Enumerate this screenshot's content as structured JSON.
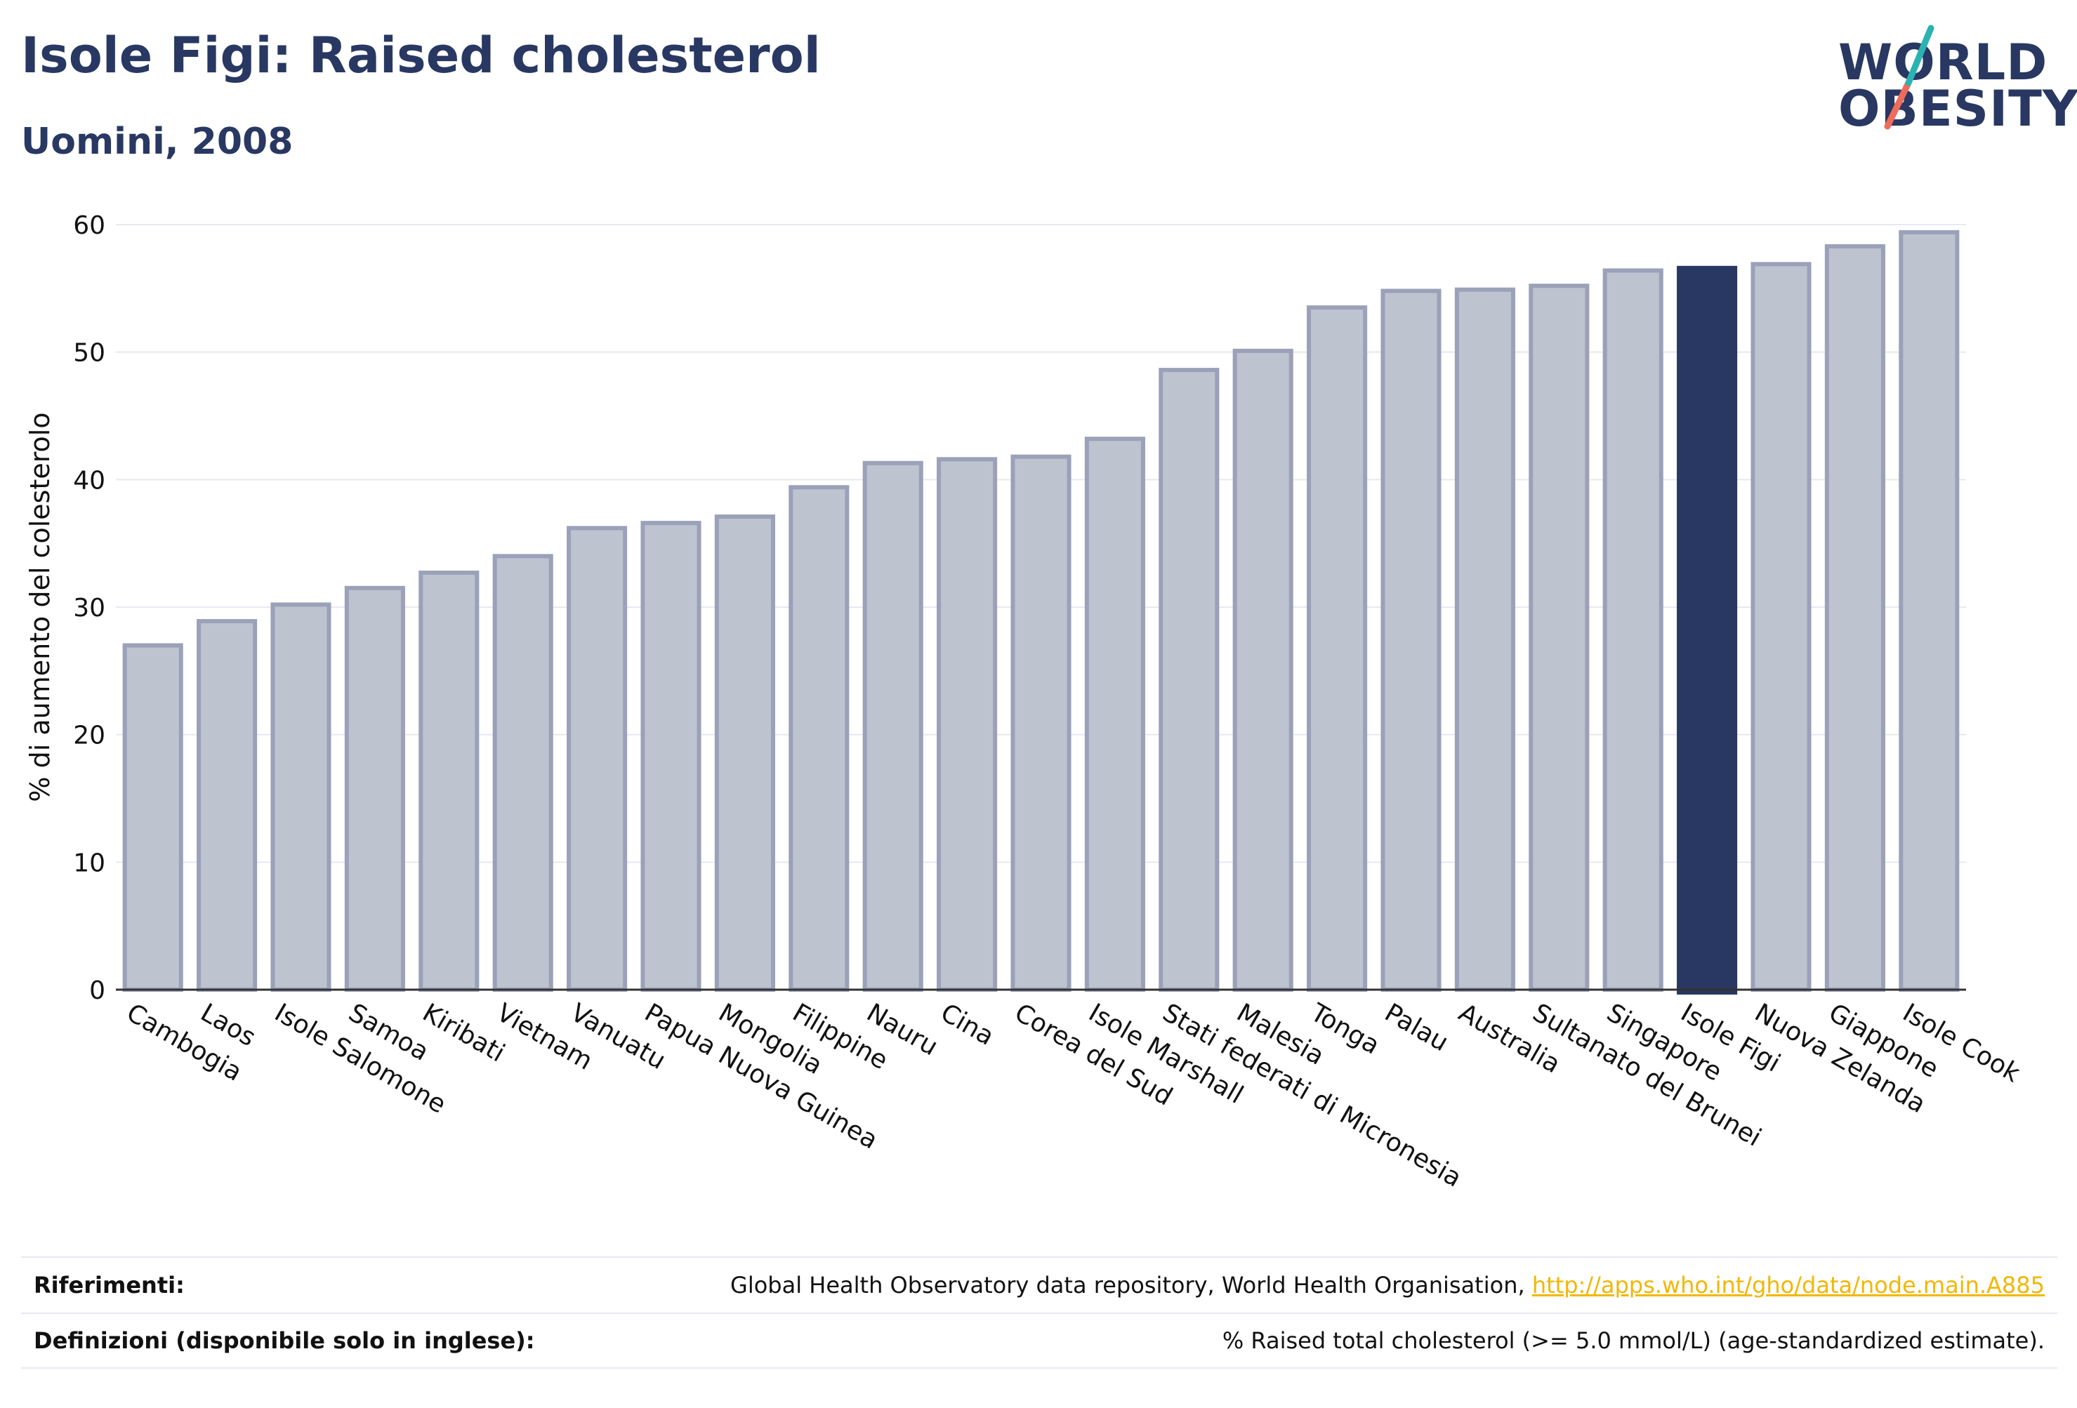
{
  "header": {
    "title": "Isole Figi: Raised cholesterol",
    "subtitle": "Uomini, 2008"
  },
  "logo": {
    "line1": "WORLD",
    "line2": "OBESITY",
    "colors": {
      "text": "#283862",
      "slash_teal": "#2ab3b1",
      "slash_coral": "#ef6b5b"
    }
  },
  "chart_data": {
    "type": "bar",
    "ylabel": "% di aumento del colesterolo",
    "xlabel": "",
    "ylim": [
      0,
      60
    ],
    "yticks": [
      0,
      10,
      20,
      30,
      40,
      50,
      60
    ],
    "grid": true,
    "highlight_category": "Isole Figi",
    "colors": {
      "bar": "#bec3d0",
      "bar_border": "#9aa1b8",
      "highlight": "#283862"
    },
    "categories": [
      "Cambogia",
      "Laos",
      "Isole Salomone",
      "Samoa",
      "Kiribati",
      "Vietnam",
      "Vanuatu",
      "Papua Nuova Guinea",
      "Mongolia",
      "Filippine",
      "Nauru",
      "Cina",
      "Corea del Sud",
      "Isole Marshall",
      "Stati federati di Micronesia",
      "Malesia",
      "Tonga",
      "Palau",
      "Australia",
      "Sultanato del Brunei",
      "Singapore",
      "Isole Figi",
      "Nuova Zelanda",
      "Giappone",
      "Isole Cook"
    ],
    "values": [
      27.0,
      28.9,
      30.2,
      31.5,
      32.7,
      34.0,
      36.2,
      36.6,
      37.1,
      39.4,
      41.3,
      41.6,
      41.8,
      43.2,
      48.6,
      50.1,
      53.5,
      54.8,
      54.9,
      55.2,
      56.4,
      56.6,
      56.9,
      58.3,
      59.4
    ]
  },
  "references": {
    "rows": [
      {
        "label": "Riferimenti:",
        "text": "Global Health Observatory data repository, World Health Organisation, ",
        "link": "http://apps.who.int/gho/data/node.main.A885"
      },
      {
        "label": "Definizioni (disponibile solo in inglese):",
        "text": "% Raised total cholesterol (>= 5.0 mmol/L) (age-standardized estimate).",
        "link": ""
      }
    ]
  }
}
